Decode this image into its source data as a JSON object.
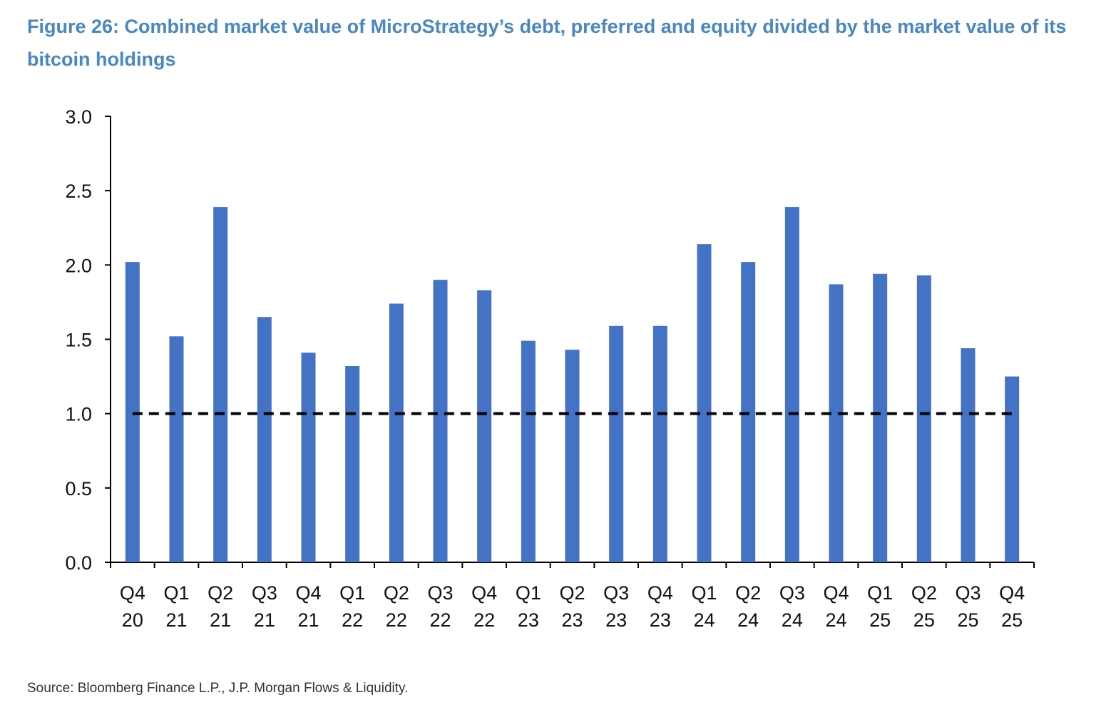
{
  "title": "Figure 26: Combined market value of MicroStrategy’s debt, preferred and equity divided by the market value of its bitcoin holdings",
  "source": "Source: Bloomberg Finance L.P., J.P. Morgan Flows & Liquidity.",
  "chart_data": {
    "type": "bar",
    "title": "Figure 26: Combined market value of MicroStrategy’s debt, preferred and equity divided by the market value of its bitcoin holdings",
    "categories": [
      [
        "Q4",
        "20"
      ],
      [
        "Q1",
        "21"
      ],
      [
        "Q2",
        "21"
      ],
      [
        "Q3",
        "21"
      ],
      [
        "Q4",
        "21"
      ],
      [
        "Q1",
        "22"
      ],
      [
        "Q2",
        "22"
      ],
      [
        "Q3",
        "22"
      ],
      [
        "Q4",
        "22"
      ],
      [
        "Q1",
        "23"
      ],
      [
        "Q2",
        "23"
      ],
      [
        "Q3",
        "23"
      ],
      [
        "Q4",
        "23"
      ],
      [
        "Q1",
        "24"
      ],
      [
        "Q2",
        "24"
      ],
      [
        "Q3",
        "24"
      ],
      [
        "Q4",
        "24"
      ],
      [
        "Q1",
        "25"
      ],
      [
        "Q2",
        "25"
      ],
      [
        "Q3",
        "25"
      ],
      [
        "Q4",
        "25"
      ]
    ],
    "values": [
      2.02,
      1.52,
      2.39,
      1.65,
      1.41,
      1.32,
      1.74,
      1.9,
      1.83,
      1.49,
      1.43,
      1.59,
      1.59,
      2.14,
      2.02,
      2.39,
      1.87,
      1.94,
      1.93,
      1.44,
      1.25
    ],
    "reference_line": {
      "y": 1.0,
      "style": "dashed",
      "color": "#000000"
    },
    "ylim": [
      0,
      3
    ],
    "yticks": [
      "0.0",
      "0.5",
      "1.0",
      "1.5",
      "2.0",
      "2.5",
      "3.0"
    ],
    "xlabel": "",
    "ylabel": "",
    "grid": false,
    "bar_color": "#4472c4"
  }
}
